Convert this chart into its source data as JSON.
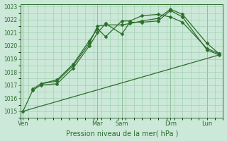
{
  "title": "",
  "xlabel": "Pression niveau de la mer( hPa )",
  "bg_color": "#cce8d8",
  "grid_color": "#99ccaa",
  "line_color": "#2d6e2d",
  "ylim": [
    1014.5,
    1023.2
  ],
  "yticks": [
    1015,
    1016,
    1017,
    1018,
    1019,
    1020,
    1021,
    1022,
    1023
  ],
  "xlim": [
    0,
    25
  ],
  "x_day_labels": [
    "Ven",
    "Mar",
    "Sam",
    "Dim",
    "Lun"
  ],
  "x_day_positions": [
    0.3,
    9.5,
    12.5,
    18.5,
    23.0
  ],
  "vline_positions": [
    0.3,
    9.5,
    12.5,
    18.5,
    23.0
  ],
  "lines": [
    {
      "x": [
        0.3,
        1.5,
        2.5,
        4.5,
        6.5,
        8.5,
        9.5,
        10.5,
        12.5,
        13.5,
        15.0,
        17.0,
        18.5,
        20.0,
        23.0,
        24.5
      ],
      "y": [
        1015.0,
        1016.6,
        1017.0,
        1017.1,
        1018.3,
        1020.0,
        1021.0,
        1021.7,
        1020.9,
        1021.8,
        1021.8,
        1021.9,
        1022.7,
        1022.2,
        1019.7,
        1019.3
      ],
      "marker": "D",
      "ms": 2.5,
      "lw": 0.9
    },
    {
      "x": [
        1.5,
        2.5,
        4.5,
        6.5,
        8.5,
        9.5,
        10.5,
        12.5,
        13.5,
        15.0,
        17.0,
        18.5,
        20.0,
        23.0,
        24.5
      ],
      "y": [
        1016.7,
        1017.1,
        1017.3,
        1018.5,
        1020.2,
        1021.5,
        1021.6,
        1021.6,
        1021.7,
        1021.9,
        1022.1,
        1022.8,
        1022.4,
        1020.2,
        1019.4
      ],
      "marker": "D",
      "ms": 2.5,
      "lw": 0.9
    },
    {
      "x": [
        2.5,
        4.5,
        6.5,
        8.5,
        9.5,
        10.5,
        12.5,
        13.5,
        15.0,
        17.0,
        18.5,
        20.0,
        23.0,
        24.5
      ],
      "y": [
        1017.1,
        1017.4,
        1018.6,
        1020.4,
        1021.3,
        1020.7,
        1021.9,
        1021.9,
        1022.3,
        1022.4,
        1022.2,
        1021.8,
        1019.8,
        1019.4
      ],
      "marker": "D",
      "ms": 2.5,
      "lw": 0.9
    },
    {
      "x": [
        0.3,
        24.5
      ],
      "y": [
        1015.0,
        1019.3
      ],
      "marker": null,
      "ms": 0,
      "lw": 0.9
    }
  ]
}
